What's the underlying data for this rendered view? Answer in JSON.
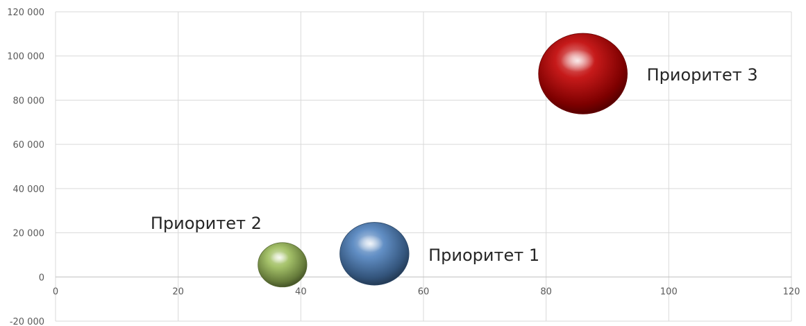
{
  "chart_data": {
    "type": "bubble",
    "xlim": [
      0,
      120
    ],
    "ylim": [
      -20000,
      120000
    ],
    "x_ticks": [
      0,
      20,
      40,
      60,
      80,
      100,
      120
    ],
    "y_ticks": [
      -20000,
      0,
      20000,
      40000,
      60000,
      80000,
      100000,
      120000
    ],
    "x_tick_labels": [
      "0",
      "20",
      "40",
      "60",
      "80",
      "100",
      "120"
    ],
    "y_tick_labels": [
      "-20 000",
      "0",
      "20 000",
      "40 000",
      "60 000",
      "80 000",
      "100 000",
      "120 000"
    ],
    "grid": true,
    "series": [
      {
        "name": "Приоритет 1",
        "label": "Приоритет 1",
        "x": 52,
        "y": 10500,
        "size": 2.0,
        "color": "#4f81bd",
        "label_position": "right"
      },
      {
        "name": "Приоритет 2",
        "label": "Приоритет 2",
        "x": 37,
        "y": 5500,
        "size": 1.0,
        "color": "#9bbb59",
        "label_position": "above-left"
      },
      {
        "name": "Приоритет 3",
        "label": "Приоритет 3",
        "x": 86,
        "y": 92000,
        "size": 3.3,
        "color": "#c00000",
        "label_position": "right"
      }
    ]
  }
}
